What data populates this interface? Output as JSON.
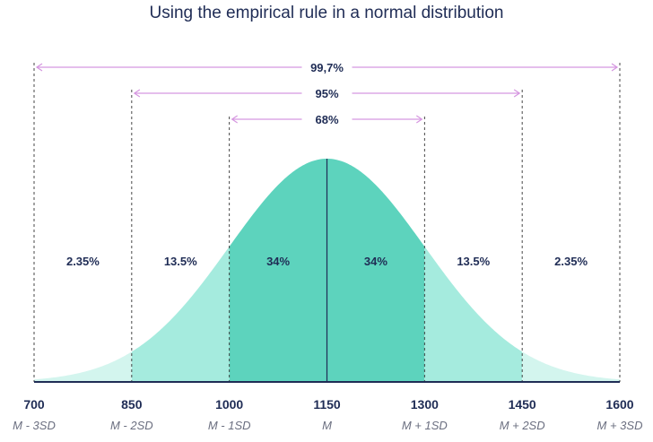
{
  "chart_data": {
    "type": "area",
    "title": "Using the empirical rule in a normal distribution",
    "mean": 1150,
    "sd": 150,
    "xlim": [
      700,
      1600
    ],
    "ticks": [
      {
        "value": 700,
        "label": "700",
        "sd_label": "M - 3SD"
      },
      {
        "value": 850,
        "label": "850",
        "sd_label": "M - 2SD"
      },
      {
        "value": 1000,
        "label": "1000",
        "sd_label": "M - 1SD"
      },
      {
        "value": 1150,
        "label": "1150",
        "sd_label": "M"
      },
      {
        "value": 1300,
        "label": "1300",
        "sd_label": "M + 1SD"
      },
      {
        "value": 1450,
        "label": "1450",
        "sd_label": "M + 2SD"
      },
      {
        "value": 1600,
        "label": "1600",
        "sd_label": "M + 3SD"
      }
    ],
    "regions": [
      {
        "from": 700,
        "to": 850,
        "percent": "2.35%"
      },
      {
        "from": 850,
        "to": 1000,
        "percent": "13.5%"
      },
      {
        "from": 1000,
        "to": 1150,
        "percent": "34%"
      },
      {
        "from": 1150,
        "to": 1300,
        "percent": "34%"
      },
      {
        "from": 1300,
        "to": 1450,
        "percent": "13.5%"
      },
      {
        "from": 1450,
        "to": 1600,
        "percent": "2.35%"
      }
    ],
    "ranges": [
      {
        "from": 1000,
        "to": 1300,
        "label": "68%"
      },
      {
        "from": 850,
        "to": 1450,
        "label": "95%"
      },
      {
        "from": 700,
        "to": 1600,
        "label": "99,7%"
      }
    ],
    "colors": {
      "one_sd": "#5dd3bd",
      "two_sd": "#a5ebde",
      "three_sd": "#d3f5ee",
      "axis": "#1f2c55",
      "arrow": "#d596e0",
      "dashed": "#333333"
    }
  }
}
